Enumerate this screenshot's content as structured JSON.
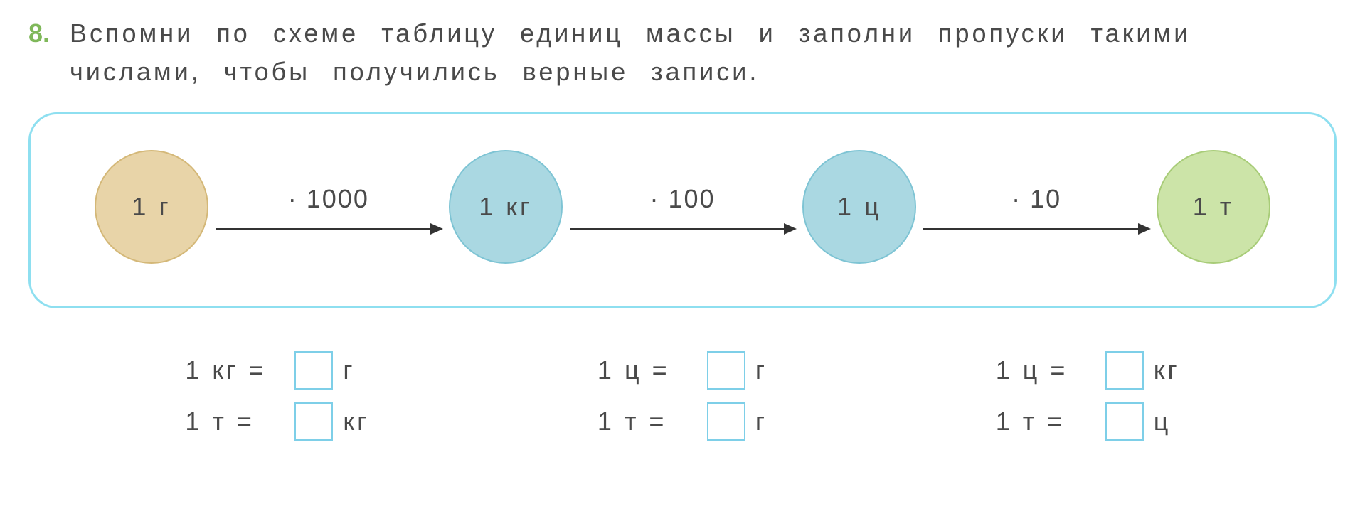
{
  "question": {
    "number": "8.",
    "number_color": "#7fb85a",
    "text": "Вспомни по схеме таблицу единиц массы и заполни пропуски такими числами, чтобы получились верные записи."
  },
  "diagram": {
    "type": "flowchart",
    "border_color": "#8edff0",
    "nodes": [
      {
        "label": "1 г",
        "fill": "#e8d4a8",
        "stroke": "#d4b878"
      },
      {
        "label": "1 кг",
        "fill": "#aad8e2",
        "stroke": "#7ec4d4"
      },
      {
        "label": "1 ц",
        "fill": "#aad8e2",
        "stroke": "#7ec4d4"
      },
      {
        "label": "1 т",
        "fill": "#cce4a8",
        "stroke": "#a8cc78"
      }
    ],
    "edges": [
      {
        "label": "· 1000"
      },
      {
        "label": "· 100"
      },
      {
        "label": "· 10"
      }
    ]
  },
  "equations": {
    "columns": [
      [
        {
          "left": "1 кг =",
          "unit": "г"
        },
        {
          "left": "1 т =",
          "unit": "кг"
        }
      ],
      [
        {
          "left": "1 ц =",
          "unit": "г"
        },
        {
          "left": "1 т =",
          "unit": "г"
        }
      ],
      [
        {
          "left": "1 ц =",
          "unit": "кг"
        },
        {
          "left": "1 т =",
          "unit": "ц"
        }
      ]
    ],
    "box_border_color": "#7ecfe8"
  },
  "styling": {
    "background_color": "#ffffff",
    "text_color": "#4a4a4a",
    "font_size_body": 36,
    "font_family": "Arial"
  }
}
